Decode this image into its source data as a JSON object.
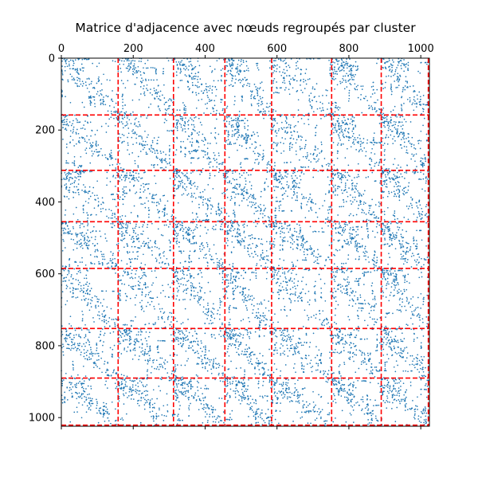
{
  "chart_data": {
    "type": "heatmap",
    "subtype": "spy-plot",
    "title": "Matrice d'adjacence avec nœuds regroupés par cluster",
    "xlabel": "",
    "ylabel": "",
    "matrix_size": 1024,
    "xlim": [
      0,
      1024
    ],
    "ylim": [
      1024,
      0
    ],
    "x_axis_position": "top",
    "y_axis_inverted": true,
    "xticks": [
      0,
      200,
      400,
      600,
      800,
      1000
    ],
    "xtick_labels": [
      "0",
      "200",
      "400",
      "600",
      "800",
      "1000"
    ],
    "yticks": [
      0,
      200,
      400,
      600,
      800,
      1000
    ],
    "ytick_labels": [
      "0",
      "200",
      "400",
      "600",
      "800",
      "1000"
    ],
    "grid": false,
    "cluster_boundaries": [
      158,
      312,
      455,
      585,
      752,
      890,
      1021
    ],
    "marker_color": "#1f77b4",
    "boundary_color": "#ff0000",
    "boundary_style": "dashed"
  }
}
